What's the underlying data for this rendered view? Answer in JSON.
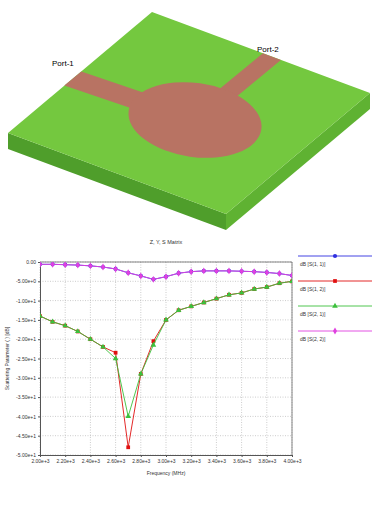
{
  "diagram": {
    "labels": [
      "Port-1",
      "Port-2"
    ]
  },
  "chart_data": {
    "type": "line",
    "title": "Z, Y, S Matrix",
    "x_label": "Frequency (MHz)",
    "y_label": "Scattering Parameter ( ) [dB]",
    "x": [
      2000,
      2100,
      2200,
      2300,
      2400,
      2500,
      2600,
      2700,
      2800,
      2900,
      3000,
      3100,
      3200,
      3300,
      3400,
      3500,
      3600,
      3700,
      3800,
      3900,
      4000
    ],
    "series": [
      {
        "name": "dB [S(1, 1)]",
        "color": "#2f2fe0",
        "marker": "circle",
        "values": [
          -0.6,
          -0.6,
          -0.7,
          -0.8,
          -1.0,
          -1.3,
          -1.8,
          -2.8,
          -3.6,
          -4.5,
          -3.8,
          -2.9,
          -2.5,
          -2.3,
          -2.3,
          -2.3,
          -2.4,
          -2.5,
          -2.7,
          -3.0,
          -3.5
        ]
      },
      {
        "name": "dB [S(1, 2)]",
        "color": "#e01010",
        "marker": "square",
        "values": [
          -14,
          -15.5,
          -16.5,
          -18,
          -20,
          -22,
          -23.5,
          -48,
          -29,
          -20.5,
          -15,
          -12.5,
          -11.5,
          -10.5,
          -9.5,
          -8.5,
          -8,
          -7,
          -6.5,
          -5.5,
          -5
        ]
      },
      {
        "name": "dB [S(2, 1)]",
        "color": "#3cc03c",
        "marker": "triangle",
        "values": [
          -14,
          -15.5,
          -16.5,
          -18,
          -20,
          -22,
          -25,
          -40,
          -29,
          -21.5,
          -15,
          -12.5,
          -11.5,
          -10.5,
          -9.5,
          -8.5,
          -8,
          -7,
          -6.5,
          -5.5,
          -5
        ]
      },
      {
        "name": "dB [S(2, 2)]",
        "color": "#e040e0",
        "marker": "diamond",
        "values": [
          -0.6,
          -0.6,
          -0.7,
          -0.8,
          -1.0,
          -1.3,
          -1.8,
          -2.8,
          -3.6,
          -4.5,
          -3.8,
          -2.9,
          -2.5,
          -2.3,
          -2.3,
          -2.3,
          -2.4,
          -2.5,
          -2.7,
          -3.0,
          -3.5
        ]
      }
    ],
    "xlim": [
      2000,
      4000
    ],
    "ylim": [
      -50,
      0
    ],
    "xticks": [
      {
        "value": 2000,
        "label": "2.00e+3"
      },
      {
        "value": 2200,
        "label": "2.20e+3"
      },
      {
        "value": 2400,
        "label": "2.40e+3"
      },
      {
        "value": 2600,
        "label": "2.60e+3"
      },
      {
        "value": 2800,
        "label": "2.80e+3"
      },
      {
        "value": 3000,
        "label": "3.00e+3"
      },
      {
        "value": 3200,
        "label": "3.20e+3"
      },
      {
        "value": 3400,
        "label": "3.40e+3"
      },
      {
        "value": 3600,
        "label": "3.60e+3"
      },
      {
        "value": 3800,
        "label": "3.80e+3"
      },
      {
        "value": 4000,
        "label": "4.00e+3"
      }
    ],
    "yticks": [
      {
        "value": 0,
        "label": "0.00"
      },
      {
        "value": -5,
        "label": "-5.00e+0"
      },
      {
        "value": -10,
        "label": "-1.00e+1"
      },
      {
        "value": -15,
        "label": "-1.50e+1"
      },
      {
        "value": -20,
        "label": "-2.00e+1"
      },
      {
        "value": -25,
        "label": "-2.50e+1"
      },
      {
        "value": -30,
        "label": "-3.00e+1"
      },
      {
        "value": -35,
        "label": "-3.50e+1"
      },
      {
        "value": -40,
        "label": "-4.00e+1"
      },
      {
        "value": -45,
        "label": "-4.50e+1"
      },
      {
        "value": -50,
        "label": "-5.00e+1"
      }
    ],
    "grid": true,
    "legend": "right"
  }
}
